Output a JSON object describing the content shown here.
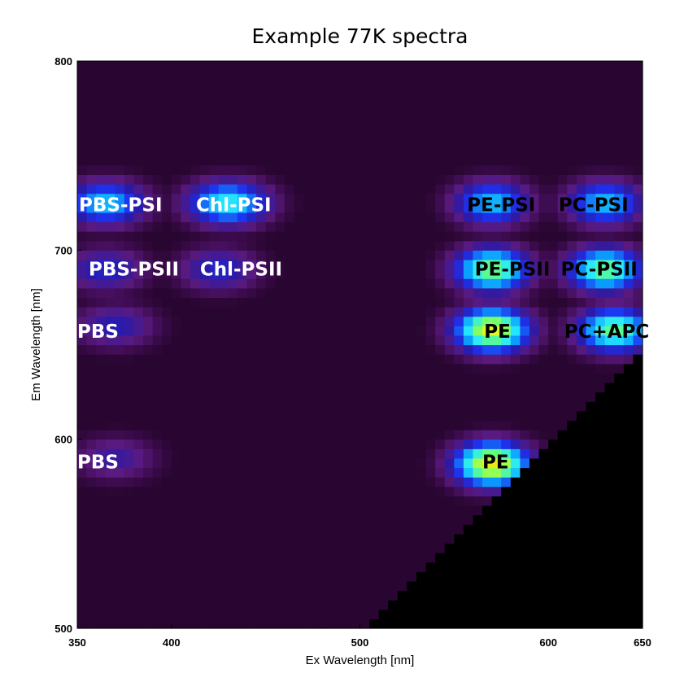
{
  "chart_data": {
    "type": "heatmap",
    "title": "Example 77K spectra",
    "xlabel": "Ex Wavelength [nm]",
    "ylabel": "Em Wavelength [nm]",
    "xlim": [
      350,
      650
    ],
    "ylim": [
      500,
      800
    ],
    "x_ticks": [
      350,
      400,
      500,
      600,
      650
    ],
    "y_ticks": [
      500,
      600,
      700,
      800
    ],
    "colormap": [
      "#1e0420",
      "#3a0a4a",
      "#5a1a80",
      "#2a1aa8",
      "#1e32f0",
      "#0aa0ff",
      "#28e8ff",
      "#60ff80",
      "#d8ff20",
      "#ffd000",
      "#ff8000"
    ],
    "masked_color": "#000000",
    "peaks": [
      {
        "ex": 365,
        "em": 725,
        "value": 0.55
      },
      {
        "ex": 430,
        "em": 725,
        "value": 0.62
      },
      {
        "ex": 365,
        "em": 690,
        "value": 0.35
      },
      {
        "ex": 425,
        "em": 690,
        "value": 0.35
      },
      {
        "ex": 370,
        "em": 660,
        "value": 0.32
      },
      {
        "ex": 370,
        "em": 590,
        "value": 0.28
      },
      {
        "ex": 570,
        "em": 725,
        "value": 0.55
      },
      {
        "ex": 630,
        "em": 725,
        "value": 0.55
      },
      {
        "ex": 570,
        "em": 690,
        "value": 0.72
      },
      {
        "ex": 630,
        "em": 690,
        "value": 0.7
      },
      {
        "ex": 570,
        "em": 658,
        "value": 0.82
      },
      {
        "ex": 635,
        "em": 658,
        "value": 0.7
      },
      {
        "ex": 570,
        "em": 587,
        "value": 0.85
      }
    ],
    "annotations": [
      {
        "text": "PBS-PSI",
        "ex": 373,
        "em": 724,
        "color": "#ffffff"
      },
      {
        "text": "Chl-PSI",
        "ex": 433,
        "em": 724,
        "color": "#ffffff"
      },
      {
        "text": "PE-PSI",
        "ex": 575,
        "em": 724,
        "color": "#000000"
      },
      {
        "text": "PC-PSI",
        "ex": 624,
        "em": 724,
        "color": "#000000"
      },
      {
        "text": "PBS-PSII",
        "ex": 380,
        "em": 690,
        "color": "#ffffff"
      },
      {
        "text": "Chl-PSII",
        "ex": 437,
        "em": 690,
        "color": "#ffffff"
      },
      {
        "text": "PE-PSII",
        "ex": 581,
        "em": 690,
        "color": "#000000"
      },
      {
        "text": "PC-PSII",
        "ex": 627,
        "em": 690,
        "color": "#000000"
      },
      {
        "text": "PBS",
        "ex": 361,
        "em": 657,
        "color": "#ffffff"
      },
      {
        "text": "PE",
        "ex": 573,
        "em": 657,
        "color": "#000000"
      },
      {
        "text": "PC+APC",
        "ex": 631,
        "em": 657,
        "color": "#000000"
      },
      {
        "text": "PBS",
        "ex": 361,
        "em": 588,
        "color": "#ffffff"
      },
      {
        "text": "PE",
        "ex": 572,
        "em": 588,
        "color": "#000000"
      }
    ]
  }
}
